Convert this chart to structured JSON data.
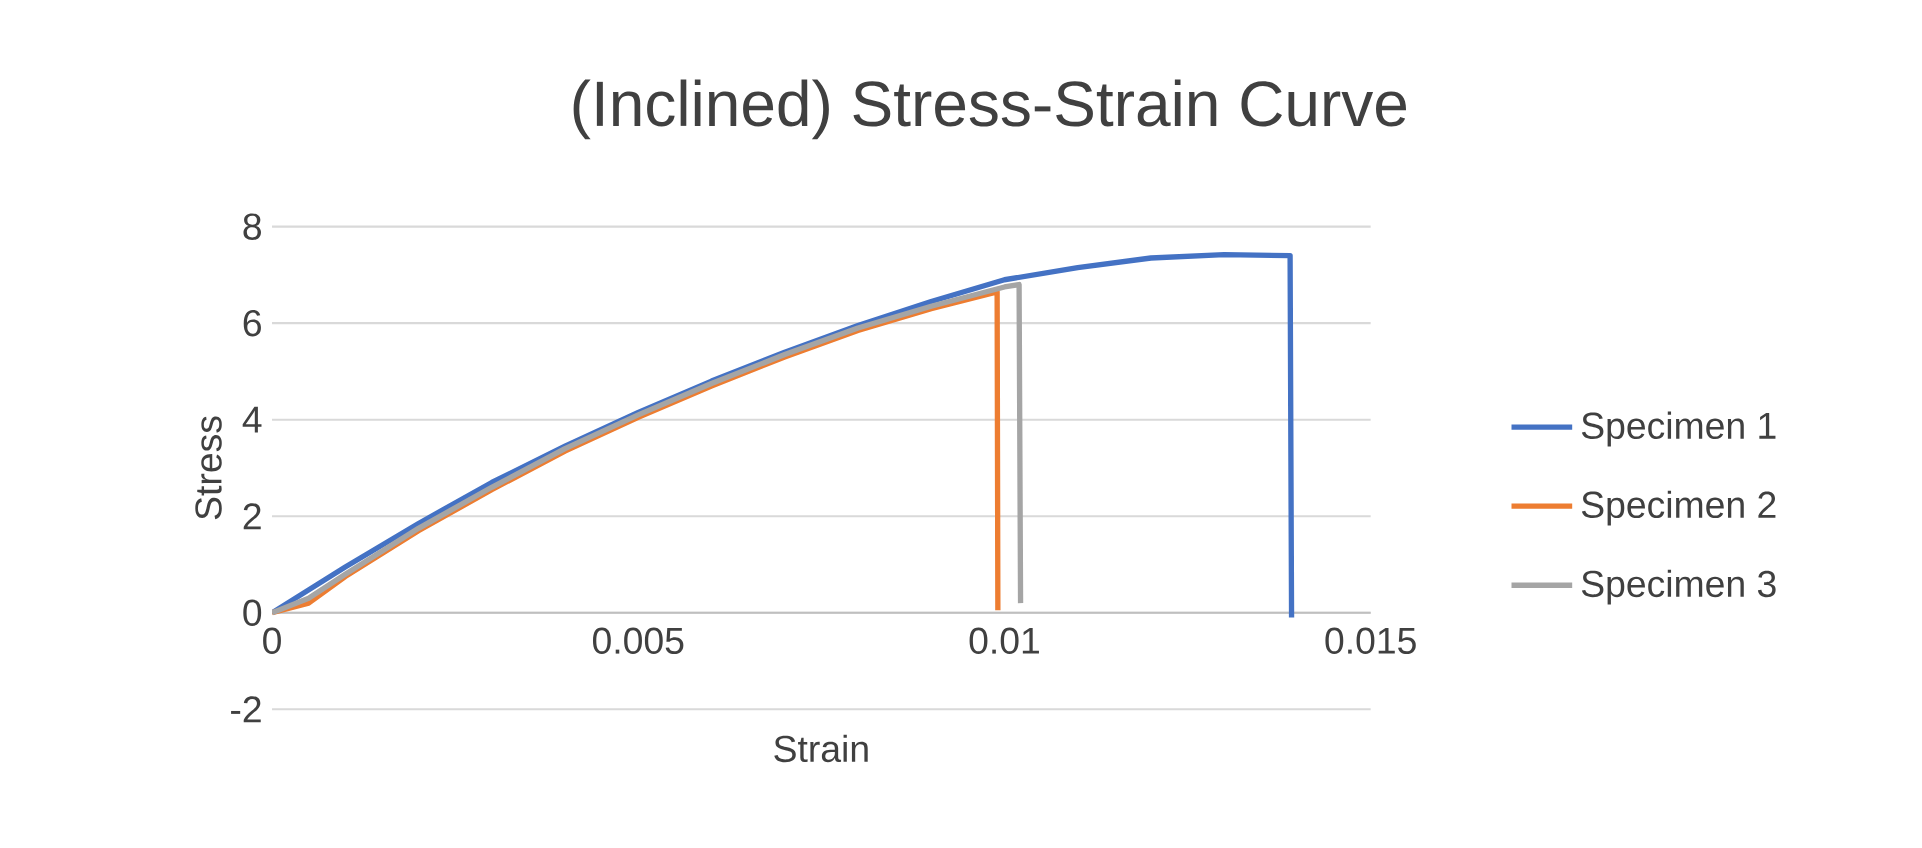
{
  "chart_data": {
    "type": "line",
    "title": "(Inclined) Stress-Strain Curve",
    "xlabel": "Strain",
    "ylabel": "Stress",
    "xlim": [
      0,
      0.015
    ],
    "xticks": [
      0,
      0.005,
      0.01,
      0.015
    ],
    "ylim": [
      -2,
      8
    ],
    "yticks": [
      -2,
      0,
      2,
      4,
      6,
      8
    ],
    "grid": "y",
    "legend": "right",
    "marker": "none",
    "line_style": "solid",
    "series": [
      {
        "name": "Specimen 1",
        "color": "#4472c4",
        "x": [
          0,
          0.001,
          0.002,
          0.003,
          0.004,
          0.005,
          0.006,
          0.007,
          0.008,
          0.009,
          0.01,
          0.011,
          0.012,
          0.013,
          0.0139,
          0.01392
        ],
        "values": [
          0,
          0.95,
          1.85,
          2.7,
          3.45,
          4.15,
          4.8,
          5.4,
          5.95,
          6.45,
          6.9,
          7.15,
          7.35,
          7.42,
          7.4,
          -0.1
        ]
      },
      {
        "name": "Specimen 2",
        "color": "#ed7d31",
        "x": [
          0,
          0.0005,
          0.001,
          0.002,
          0.003,
          0.004,
          0.005,
          0.006,
          0.007,
          0.008,
          0.009,
          0.0099,
          0.00991
        ],
        "values": [
          0,
          0.2,
          0.75,
          1.7,
          2.55,
          3.35,
          4.05,
          4.7,
          5.3,
          5.85,
          6.3,
          6.65,
          0.05
        ]
      },
      {
        "name": "Specimen 3",
        "color": "#a5a5a5",
        "x": [
          0,
          0.0005,
          0.001,
          0.002,
          0.003,
          0.004,
          0.005,
          0.006,
          0.007,
          0.008,
          0.009,
          0.01,
          0.0102,
          0.01022
        ],
        "values": [
          0,
          0.3,
          0.8,
          1.75,
          2.6,
          3.4,
          4.1,
          4.75,
          5.35,
          5.9,
          6.35,
          6.75,
          6.8,
          0.2
        ]
      }
    ]
  }
}
